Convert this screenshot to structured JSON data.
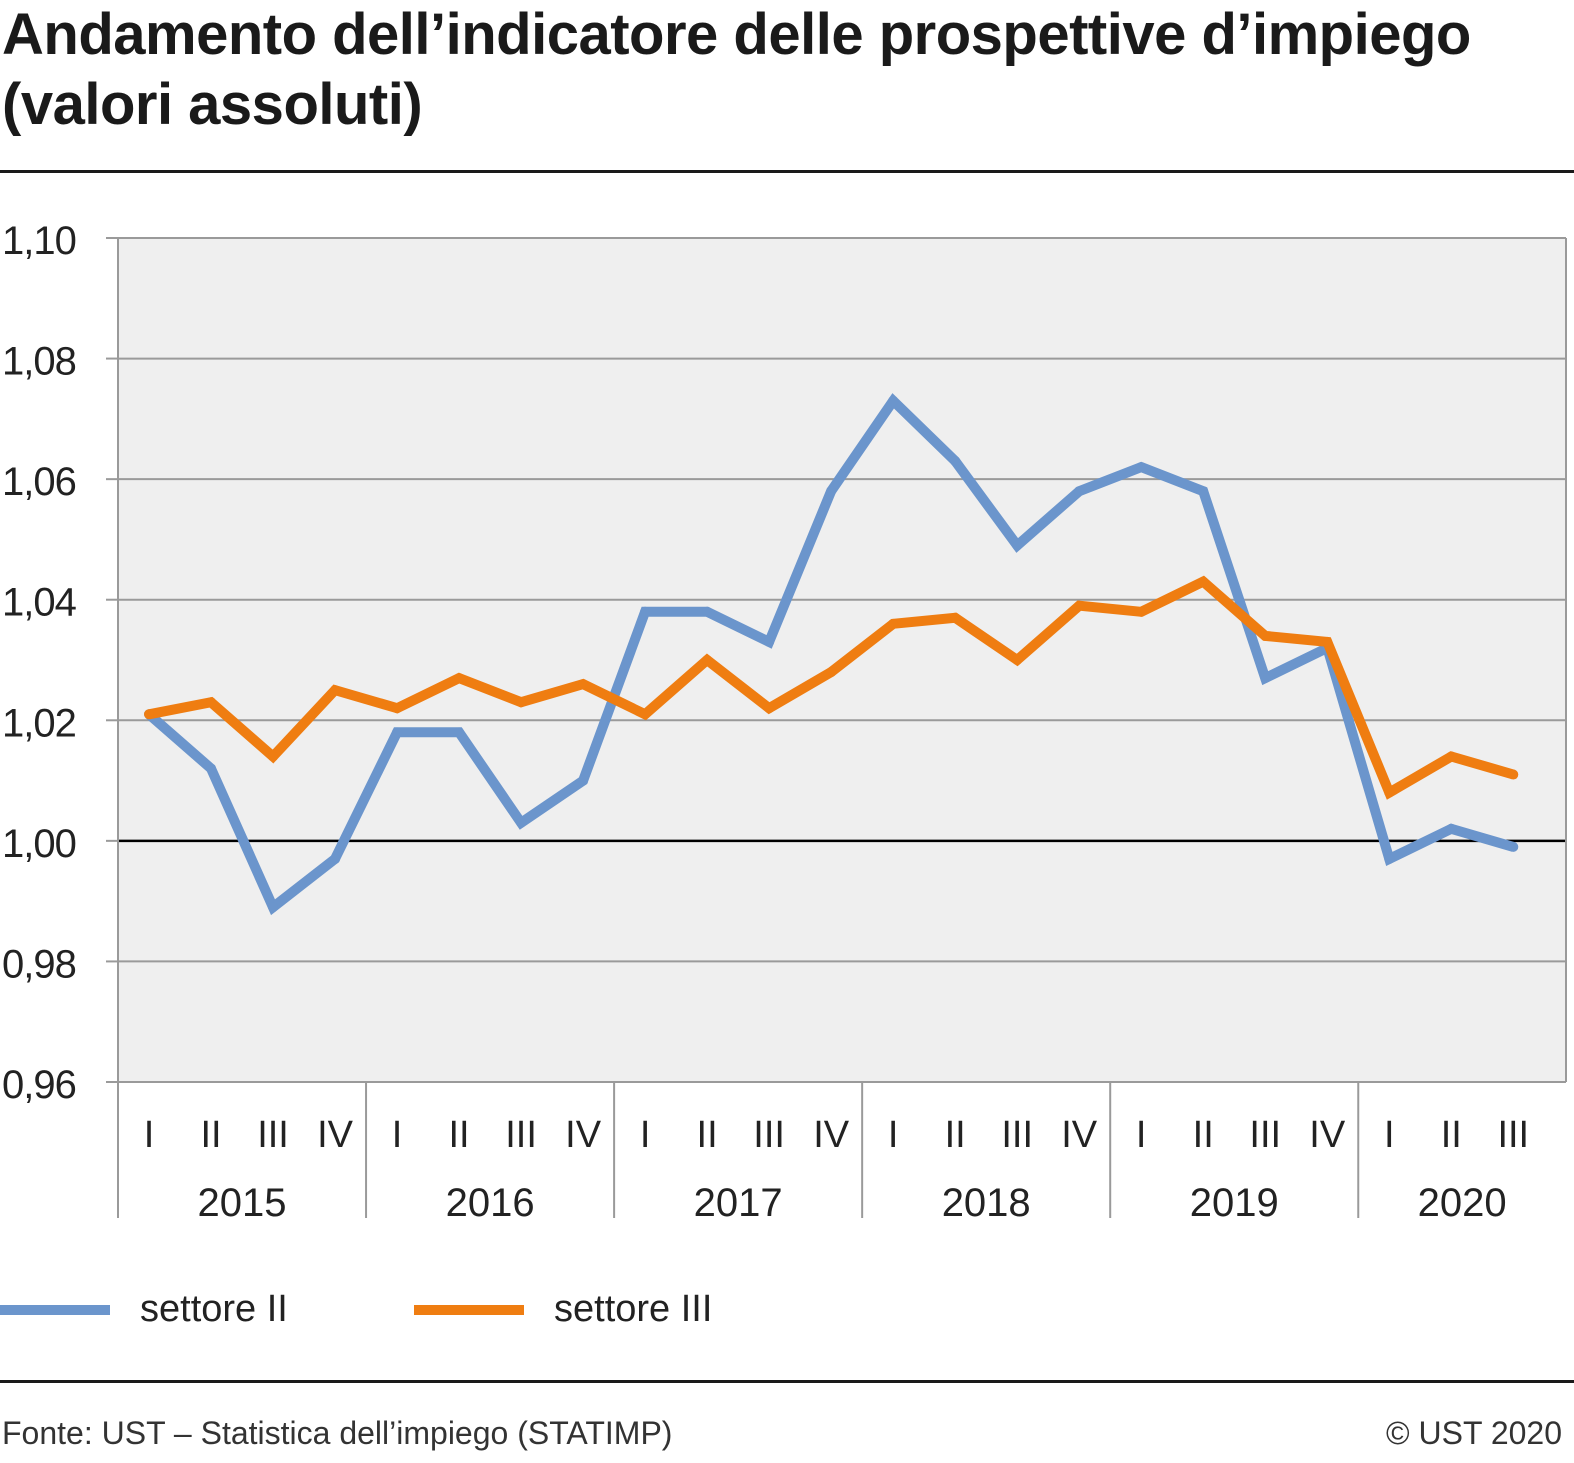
{
  "title": "Andamento dell’indicatore delle prospettive d’impiego (valori assoluti)",
  "source": "Fonte: UST – Statistica dell’impiego (STATIMP)",
  "copyright": "© UST 2020",
  "colors": {
    "settore_ii": "#6b95cc",
    "settore_iii": "#ef7d11",
    "plot_background": "#efefef",
    "gridline": "#9a9a9a",
    "baseline": "#000000"
  },
  "chart_data": {
    "type": "line",
    "title": "Andamento dell’indicatore delle prospettive d’impiego (valori assoluti)",
    "xlabel": "",
    "ylabel": "",
    "ylim": [
      0.96,
      1.1
    ],
    "y_ticks": [
      "1,10",
      "1,08",
      "1,06",
      "1,04",
      "1,02",
      "1,00",
      "0,98",
      "0,96"
    ],
    "y_tick_values": [
      1.1,
      1.08,
      1.06,
      1.04,
      1.02,
      1.0,
      0.98,
      0.96
    ],
    "baseline": 1.0,
    "grid": true,
    "legend_position": "bottom-left",
    "years": [
      {
        "label": "2015",
        "quarters": [
          "I",
          "II",
          "III",
          "IV"
        ]
      },
      {
        "label": "2016",
        "quarters": [
          "I",
          "II",
          "III",
          "IV"
        ]
      },
      {
        "label": "2017",
        "quarters": [
          "I",
          "II",
          "III",
          "IV"
        ]
      },
      {
        "label": "2018",
        "quarters": [
          "I",
          "II",
          "III",
          "IV"
        ]
      },
      {
        "label": "2019",
        "quarters": [
          "I",
          "II",
          "III",
          "IV"
        ]
      },
      {
        "label": "2020",
        "quarters": [
          "I",
          "II",
          "III"
        ]
      }
    ],
    "series": [
      {
        "name": "settore II",
        "color": "#6b95cc",
        "values": [
          1.021,
          1.012,
          0.989,
          0.997,
          1.018,
          1.018,
          1.003,
          1.01,
          1.038,
          1.038,
          1.033,
          1.058,
          1.073,
          1.063,
          1.049,
          1.058,
          1.062,
          1.058,
          1.027,
          1.032,
          0.997,
          1.002,
          0.999
        ]
      },
      {
        "name": "settore III",
        "color": "#ef7d11",
        "values": [
          1.021,
          1.023,
          1.014,
          1.025,
          1.022,
          1.027,
          1.023,
          1.026,
          1.021,
          1.03,
          1.022,
          1.028,
          1.036,
          1.037,
          1.03,
          1.039,
          1.038,
          1.043,
          1.034,
          1.033,
          1.008,
          1.014,
          1.011
        ]
      }
    ]
  }
}
